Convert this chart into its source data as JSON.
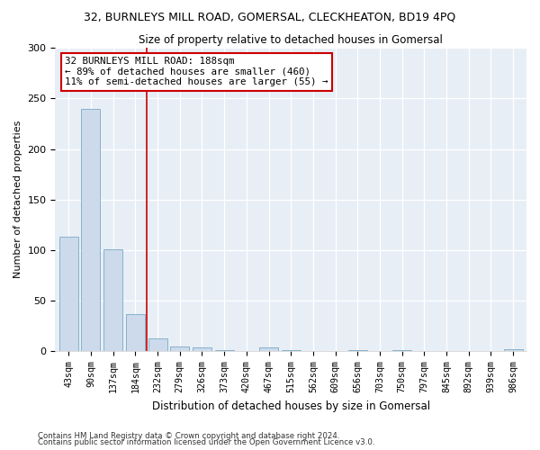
{
  "title": "32, BURNLEYS MILL ROAD, GOMERSAL, CLECKHEATON, BD19 4PQ",
  "subtitle": "Size of property relative to detached houses in Gomersal",
  "xlabel": "Distribution of detached houses by size in Gomersal",
  "ylabel": "Number of detached properties",
  "bar_color": "#ccdaeb",
  "bar_edge_color": "#7aaac8",
  "categories": [
    "43sqm",
    "90sqm",
    "137sqm",
    "184sqm",
    "232sqm",
    "279sqm",
    "326sqm",
    "373sqm",
    "420sqm",
    "467sqm",
    "515sqm",
    "562sqm",
    "609sqm",
    "656sqm",
    "703sqm",
    "750sqm",
    "797sqm",
    "845sqm",
    "892sqm",
    "939sqm",
    "986sqm"
  ],
  "values": [
    113,
    240,
    101,
    37,
    13,
    5,
    4,
    1,
    0,
    4,
    1,
    0,
    0,
    1,
    0,
    1,
    0,
    0,
    0,
    0,
    2
  ],
  "vline_x": 3.5,
  "vline_color": "#cc0000",
  "annotation_text": "32 BURNLEYS MILL ROAD: 188sqm\n← 89% of detached houses are smaller (460)\n11% of semi-detached houses are larger (55) →",
  "annotation_box_color": "white",
  "annotation_box_edge_color": "#cc0000",
  "ylim": [
    0,
    300
  ],
  "yticks": [
    0,
    50,
    100,
    150,
    200,
    250,
    300
  ],
  "footnote1": "Contains HM Land Registry data © Crown copyright and database right 2024.",
  "footnote2": "Contains public sector information licensed under the Open Government Licence v3.0."
}
